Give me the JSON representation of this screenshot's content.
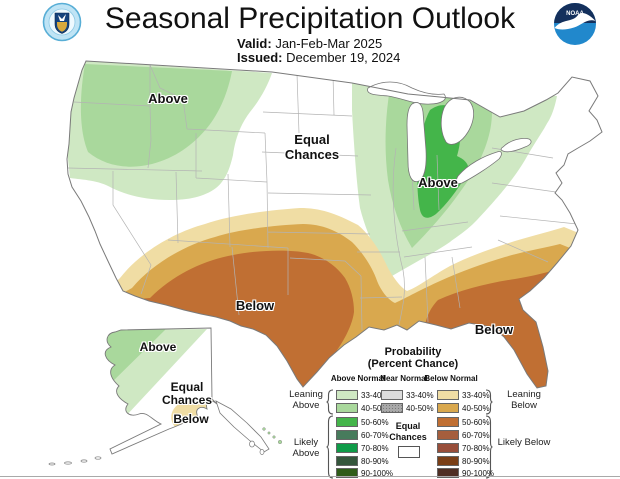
{
  "header": {
    "title": "Seasonal Precipitation Outlook",
    "valid_label": "Valid:",
    "valid_value": "Jan-Feb-Mar 2025",
    "issued_label": "Issued:",
    "issued_value": "December 19, 2024"
  },
  "logos": {
    "noaa_text": "NOAA"
  },
  "map": {
    "labels": {
      "pnw_above": "Above",
      "gl_above": "Above",
      "equal_line1": "Equal",
      "equal_line2": "Chances",
      "south_below": "Below",
      "se_below": "Below"
    },
    "alaska": {
      "above": "Above",
      "equal_line1": "Equal",
      "equal_line2": "Chances",
      "below": "Below"
    }
  },
  "legend": {
    "title_line1": "Probability",
    "title_line2": "(Percent Chance)",
    "columns": {
      "above": "Above Normal",
      "near": "Near Normal",
      "below": "Below Normal"
    },
    "groups": {
      "leaning_above": "Leaning Above",
      "likely_above": "Likely Above",
      "leaning_below": "Leaning Below",
      "likely_below": "Likely Below"
    },
    "equal_label_line1": "Equal",
    "equal_label_line2": "Chances",
    "percent_rows": [
      "33-40%",
      "40-50%",
      "50-60%",
      "60-70%",
      "70-80%",
      "80-90%",
      "90-100%"
    ],
    "near_rows": [
      "33-40%",
      "40-50%"
    ]
  },
  "colors": {
    "above": [
      "#cfe8c3",
      "#a9d89c",
      "#44b54a",
      "#477b5c",
      "#0f9b48",
      "#35563c",
      "#2f5c19"
    ],
    "near": [
      "#dcdcdc",
      "#a8a8a8"
    ],
    "below": [
      "#f0dda4",
      "#d9a84e",
      "#c06f33",
      "#a55e3d",
      "#984e3a",
      "#7a3f17",
      "#4f2f25"
    ],
    "equal": "#ffffff",
    "outline": "#7a7a7a",
    "statelines": "#b3b3b3"
  }
}
